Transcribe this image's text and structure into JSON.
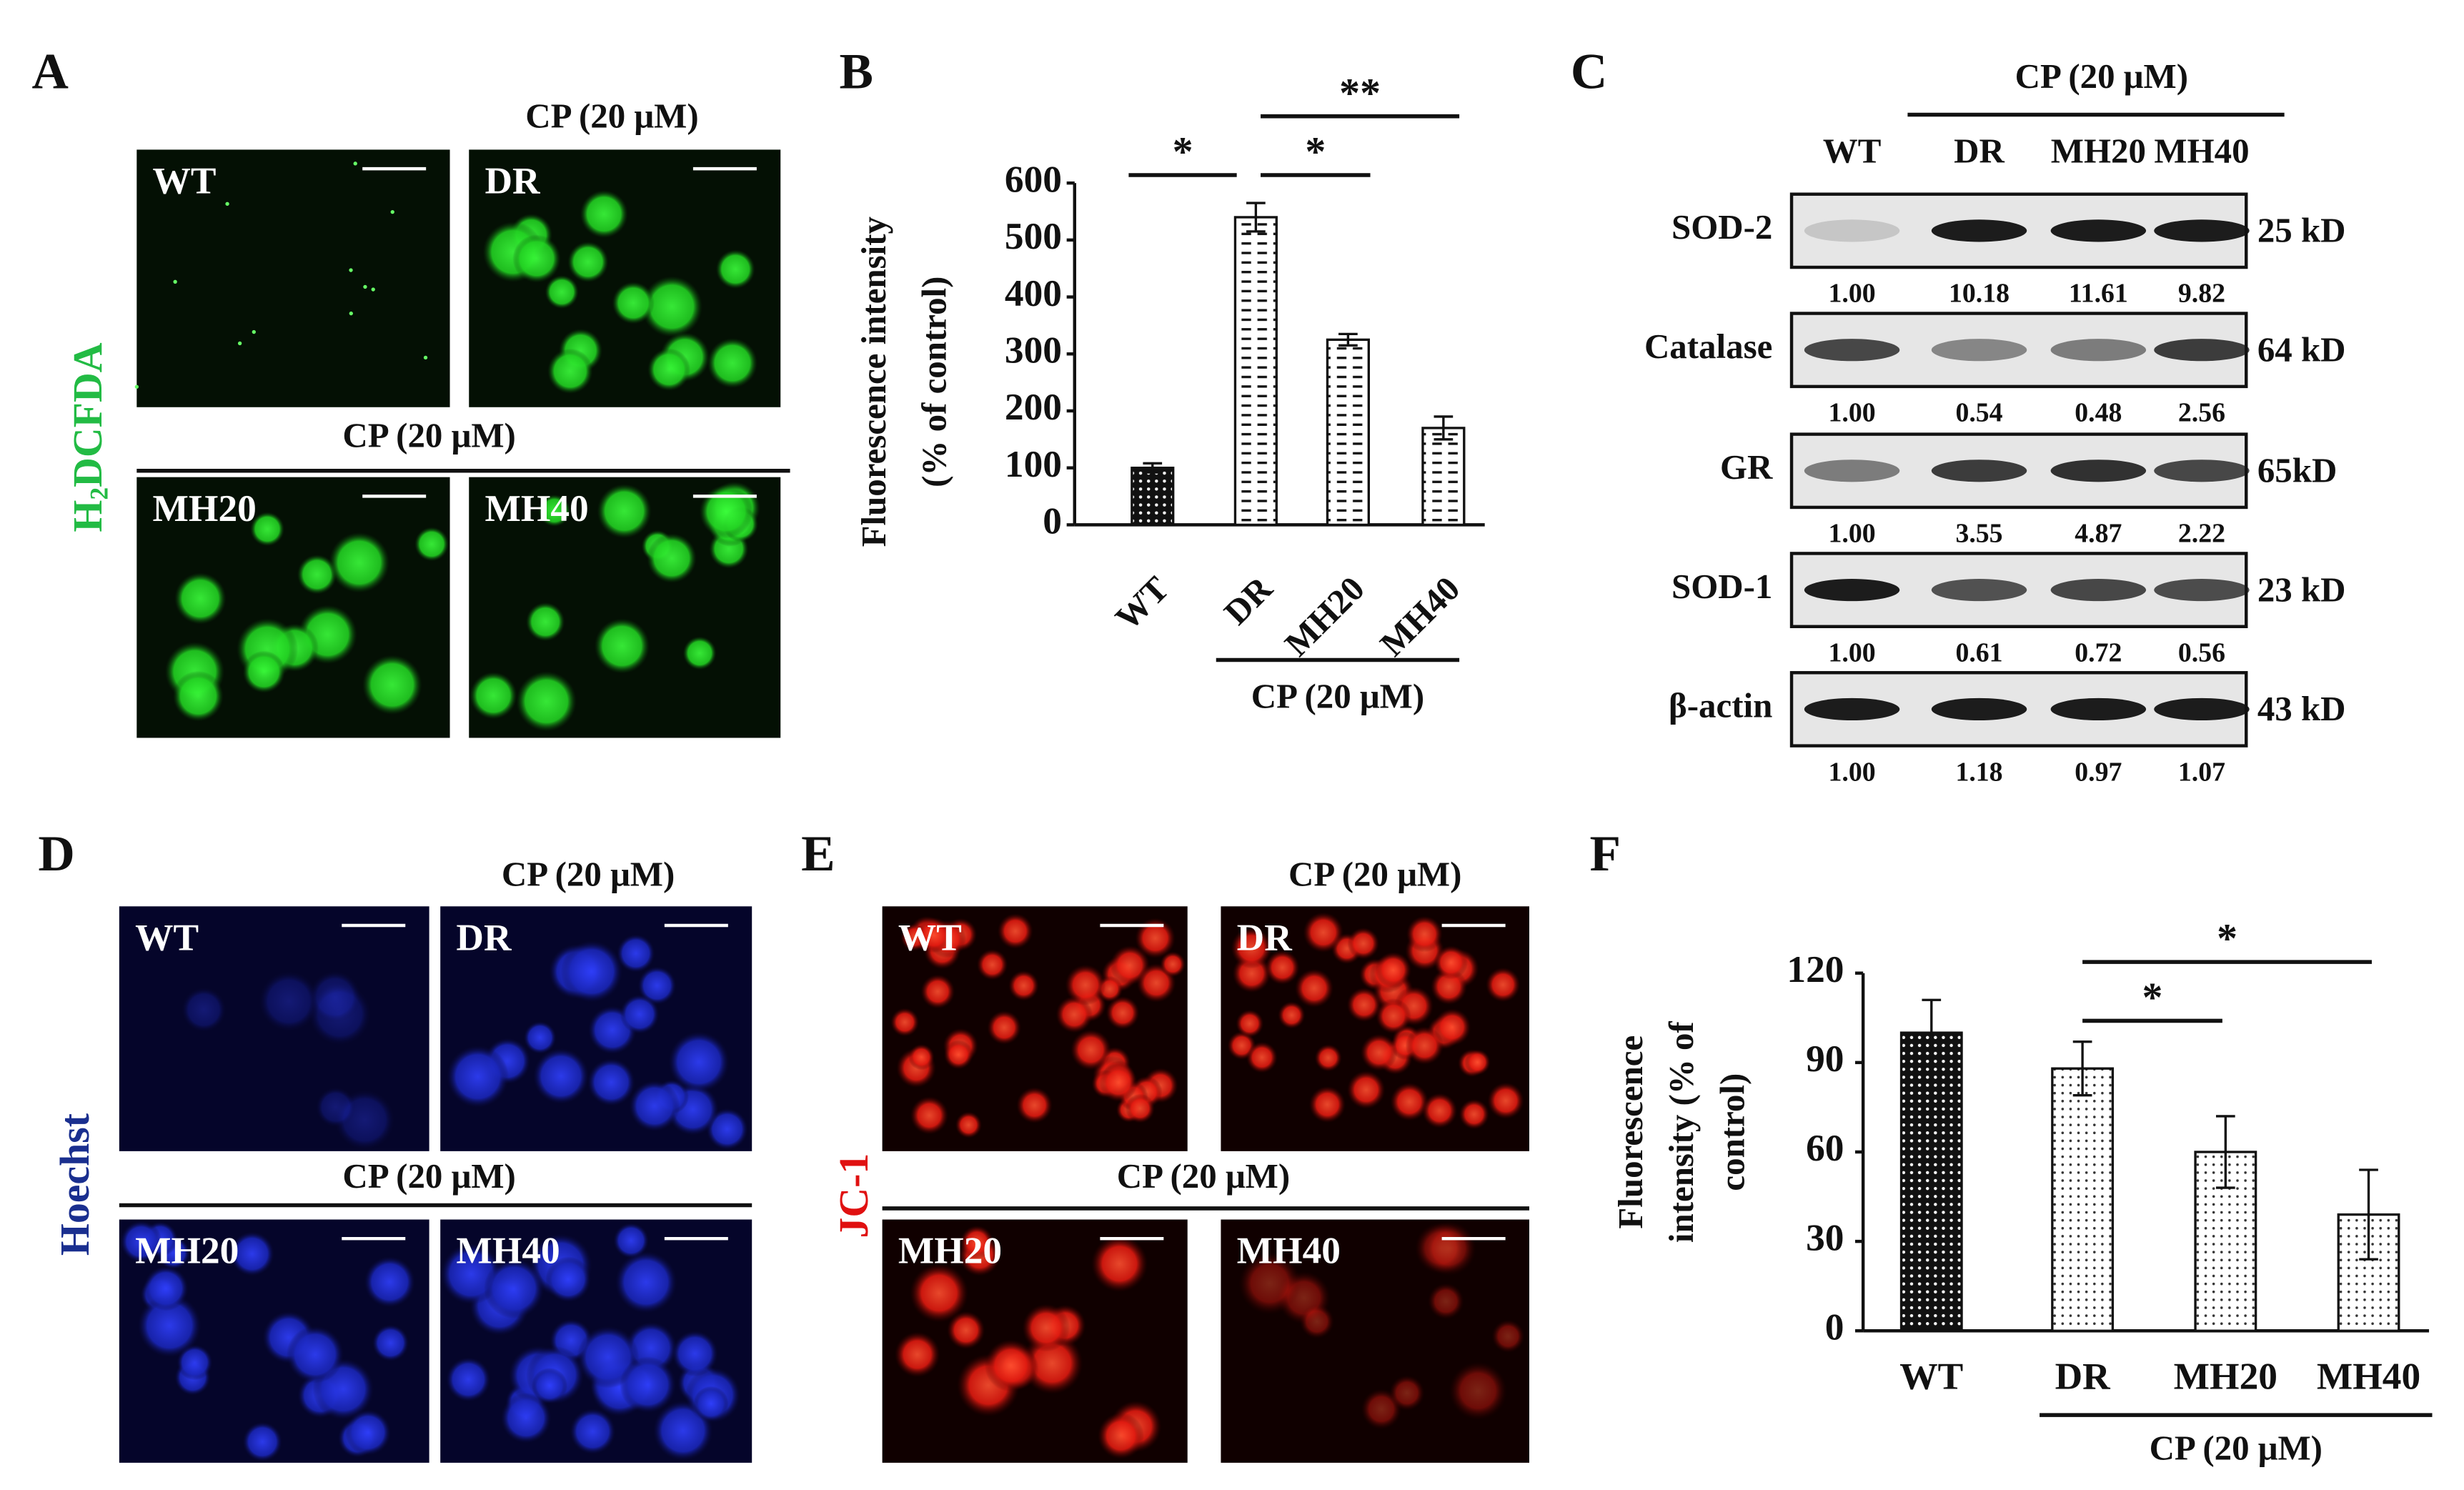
{
  "panel_letters": [
    "A",
    "B",
    "C",
    "D",
    "E",
    "F"
  ],
  "micrographs": [
    {
      "stain_parts": [
        "H",
        "2",
        "DCFDA"
      ],
      "treatment_labels": [
        "CP (20 μM)",
        "CP (20 μM)"
      ],
      "images": [
        "WT",
        "DR",
        "MH20",
        "MH40"
      ]
    },
    {
      "stain_parts": [
        "Hoechst"
      ],
      "treatment_labels": [
        "CP (20 μM)",
        "CP (20 μM)"
      ],
      "images": [
        "WT",
        "DR",
        "MH20",
        "MH40"
      ]
    },
    {
      "stain_parts": [
        "JC-1"
      ],
      "treatment_labels": [
        "CP (20 μM)",
        "CP (20 μM)"
      ],
      "images": [
        "WT",
        "DR",
        "MH20",
        "MH40"
      ]
    }
  ],
  "blot": {
    "treatment": "CP (20 μM)",
    "lanes": [
      "WT",
      "DR",
      "MH20",
      "MH40"
    ],
    "rows": [
      {
        "protein": "SOD-2",
        "size": "25 kD",
        "ratios": [
          "1.00",
          "10.18",
          "11.61",
          "9.82"
        ]
      },
      {
        "protein": "Catalase",
        "size": "64 kD",
        "ratios": [
          "1.00",
          "0.54",
          "0.48",
          "2.56"
        ]
      },
      {
        "protein": "GR",
        "size": "65kD",
        "ratios": [
          "1.00",
          "3.55",
          "4.87",
          "2.22"
        ]
      },
      {
        "protein": "SOD-1",
        "size": "23 kD",
        "ratios": [
          "1.00",
          "0.61",
          "0.72",
          "0.56"
        ]
      },
      {
        "protein": "β-actin",
        "size": "43 kD",
        "ratios": [
          "1.00",
          "1.18",
          "0.97",
          "1.07"
        ]
      }
    ]
  },
  "chart_data": [
    {
      "type": "bar",
      "ylabel": [
        "Fluorescence intensity",
        "(% of control)"
      ],
      "categories": [
        "WT",
        "DR",
        "MH20",
        "MH40"
      ],
      "values": [
        100,
        540,
        325,
        170
      ],
      "errors": [
        8,
        25,
        10,
        20
      ],
      "ylim": [
        0,
        600
      ],
      "yticks": [
        0,
        100,
        200,
        300,
        400,
        500,
        600
      ],
      "annotations": [
        "*",
        "*",
        "**"
      ],
      "group_label": "CP (20 μM)"
    },
    {
      "type": "bar",
      "ylabel": [
        "Fluorescence",
        "intensity (% of",
        "control)"
      ],
      "categories": [
        "WT",
        "DR",
        "MH20",
        "MH40"
      ],
      "values": [
        100,
        88,
        60,
        39
      ],
      "errors": [
        11,
        9,
        12,
        15
      ],
      "ylim": [
        0,
        120
      ],
      "yticks": [
        0,
        30,
        60,
        90,
        120
      ],
      "annotations": [
        "*",
        "*"
      ],
      "group_label": "CP (20 μM)"
    }
  ]
}
